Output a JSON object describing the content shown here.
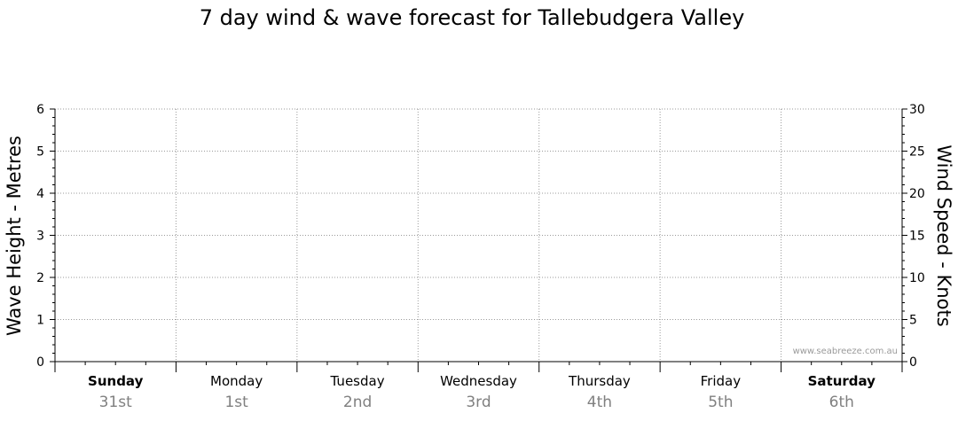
{
  "chart_data": {
    "type": "line",
    "title": "7 day wind & wave forecast for Tallebudgera Valley",
    "ylabel_left": "Wave Height - Metres",
    "ylabel_right": "Wind Speed - Knots",
    "ylim_left": [
      0,
      6
    ],
    "ylim_right": [
      0,
      30
    ],
    "yticks_left": [
      "0",
      "1",
      "2",
      "3",
      "4",
      "5",
      "6"
    ],
    "yticks_right": [
      "0",
      "5",
      "10",
      "15",
      "20",
      "25",
      "30"
    ],
    "days": [
      {
        "name": "Sunday",
        "date": "31st",
        "bold": true
      },
      {
        "name": "Monday",
        "date": "1st",
        "bold": false
      },
      {
        "name": "Tuesday",
        "date": "2nd",
        "bold": false
      },
      {
        "name": "Wednesday",
        "date": "3rd",
        "bold": false
      },
      {
        "name": "Thursday",
        "date": "4th",
        "bold": false
      },
      {
        "name": "Friday",
        "date": "5th",
        "bold": false
      },
      {
        "name": "Saturday",
        "date": "6th",
        "bold": true
      }
    ],
    "series": [],
    "grid": true,
    "watermark": "www.seabreeze.com.au"
  }
}
